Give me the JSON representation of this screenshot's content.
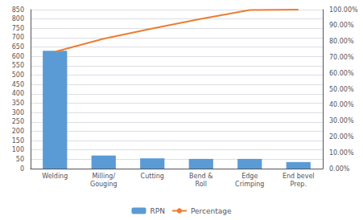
{
  "chart_data": {
    "type": "bar",
    "categories": [
      "Welding",
      "Milling/\nGouging",
      "Cutting",
      "Bend &\nRoll",
      "Edge\nCrimping",
      "End bevel\nPrep."
    ],
    "series": [
      {
        "name": "RPN",
        "type": "bar",
        "color": "#5B9BD5",
        "values": [
          630,
          70,
          55,
          52,
          52,
          35
        ]
      },
      {
        "name": "Percentage",
        "type": "line",
        "axis": "y2",
        "color": "#ED7D31",
        "values": [
          0.735,
          0.817,
          0.881,
          0.942,
          0.998,
          1.0
        ]
      }
    ],
    "ylim": [
      0,
      850
    ],
    "yticks": [
      0,
      50,
      100,
      150,
      200,
      250,
      300,
      350,
      400,
      450,
      500,
      550,
      600,
      650,
      700,
      750,
      800,
      850
    ],
    "y2lim": [
      0,
      1.0
    ],
    "y2ticks": [
      {
        "value": 0.0,
        "label": "0.00%"
      },
      {
        "value": 0.1,
        "label": "10.00%"
      },
      {
        "value": 0.2,
        "label": "20.00%"
      },
      {
        "value": 0.3,
        "label": "30.00%"
      },
      {
        "value": 0.4,
        "label": "40.00%"
      },
      {
        "value": 0.5,
        "label": "50.00%"
      },
      {
        "value": 0.6,
        "label": "60.00%"
      },
      {
        "value": 0.7,
        "label": "70.00%"
      },
      {
        "value": 0.8,
        "label": "80.00%"
      },
      {
        "value": 0.9,
        "label": "90.00%"
      },
      {
        "value": 1.0,
        "label": "100.00%"
      }
    ],
    "grid": true,
    "legend": "bottom"
  }
}
